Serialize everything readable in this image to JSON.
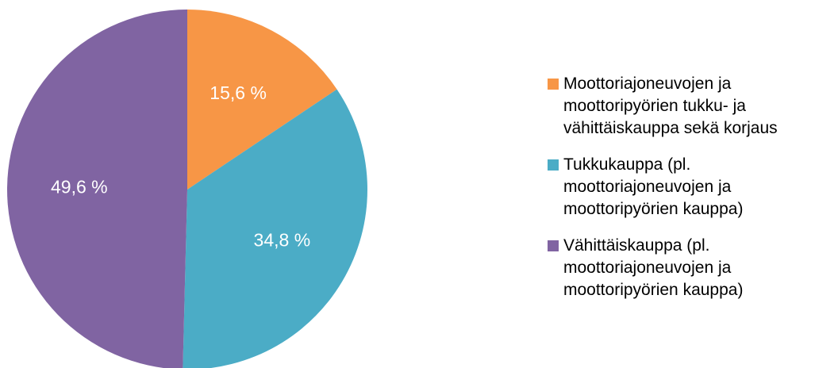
{
  "chart_data": {
    "type": "pie",
    "categories": [
      "Moottoriajoneuvojen ja moottoripyörien tukku- ja vähittäiskauppa sekä korjaus",
      "Tukkukauppa (pl. moottoriajoneuvojen ja moottoripyörien kauppa)",
      "Vähittäiskauppa (pl. moottoriajoneuvojen ja moottoripyörien kauppa)"
    ],
    "values": [
      15.6,
      34.8,
      49.6
    ],
    "value_labels": [
      "15,6 %",
      "34,8 %",
      "49,6 %"
    ],
    "colors": [
      "#f79646",
      "#4bacc6",
      "#8064a2"
    ],
    "legend": "right"
  }
}
